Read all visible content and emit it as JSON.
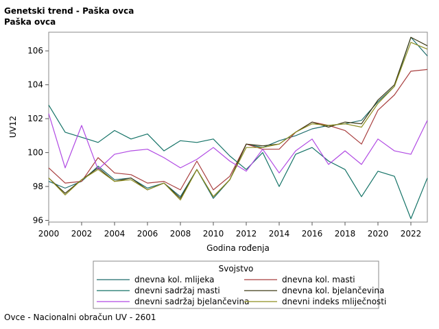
{
  "title_line1": "Genetski trend - Paška ovca",
  "title_line2": "Paška ovca",
  "footnote": "Ovce - Nacionalni obračun UV - 2601",
  "chart_data": {
    "type": "line",
    "xlabel": "Godina rođenja",
    "ylabel": "UV12",
    "xlim": [
      2000,
      2023
    ],
    "ylim": [
      95.9,
      107.1
    ],
    "xticks": [
      2000,
      2002,
      2004,
      2006,
      2008,
      2010,
      2012,
      2014,
      2016,
      2018,
      2020,
      2022
    ],
    "yticks": [
      96,
      98,
      100,
      102,
      104,
      106
    ],
    "grid": false,
    "legend_title": "Svojstvo",
    "legend_position": "bottom",
    "x": [
      2000,
      2001,
      2002,
      2003,
      2004,
      2005,
      2006,
      2007,
      2008,
      2009,
      2010,
      2011,
      2012,
      2013,
      2014,
      2015,
      2016,
      2017,
      2018,
      2019,
      2020,
      2021,
      2022,
      2023
    ],
    "series": [
      {
        "name": "dnevna kol. mlijeka",
        "color": "#1c6b6b",
        "values": [
          98.3,
          97.9,
          98.3,
          99.2,
          98.4,
          98.5,
          97.9,
          98.2,
          97.4,
          99.0,
          97.3,
          98.4,
          100.5,
          100.3,
          100.7,
          101.0,
          101.4,
          101.6,
          101.7,
          101.9,
          103.0,
          103.9,
          106.8,
          105.7
        ]
      },
      {
        "name": "dnevna kol. masti",
        "color": "#a83e3e",
        "values": [
          99.1,
          98.2,
          98.3,
          99.7,
          98.8,
          98.7,
          98.2,
          98.3,
          97.8,
          99.5,
          97.8,
          98.6,
          100.5,
          100.2,
          100.2,
          101.2,
          101.8,
          101.6,
          101.3,
          100.5,
          102.5,
          103.4,
          104.8,
          104.9
        ]
      },
      {
        "name": "dnevni sadržaj masti",
        "color": "#137266",
        "values": [
          102.8,
          101.2,
          100.9,
          100.6,
          101.3,
          100.8,
          101.1,
          100.1,
          100.7,
          100.6,
          100.8,
          99.8,
          99.0,
          100.0,
          98.0,
          99.9,
          100.3,
          99.5,
          99.0,
          97.4,
          98.9,
          98.6,
          96.1,
          98.5
        ]
      },
      {
        "name": "dnevna kol. bjelančevina",
        "color": "#3e3a14",
        "values": [
          98.5,
          97.6,
          98.4,
          99.1,
          98.3,
          98.5,
          97.8,
          98.2,
          97.3,
          99.0,
          97.4,
          98.4,
          100.5,
          100.4,
          100.5,
          101.2,
          101.8,
          101.5,
          101.8,
          101.7,
          103.1,
          104.0,
          106.8,
          106.3
        ]
      },
      {
        "name": "dnevni sadržaj bjelančevina",
        "color": "#b049e3",
        "values": [
          102.3,
          99.1,
          101.6,
          99.0,
          99.9,
          100.1,
          100.2,
          99.7,
          99.1,
          99.6,
          100.3,
          99.5,
          98.9,
          100.2,
          98.8,
          100.1,
          100.8,
          99.3,
          100.1,
          99.3,
          100.8,
          100.1,
          99.9,
          101.9
        ]
      },
      {
        "name": "dnevni indeks mliječnosti",
        "color": "#8d8d1f",
        "values": [
          98.5,
          97.5,
          98.4,
          99.0,
          98.3,
          98.4,
          97.8,
          98.2,
          97.2,
          99.0,
          97.4,
          98.4,
          100.3,
          100.3,
          100.5,
          101.2,
          101.7,
          101.6,
          101.7,
          101.5,
          102.9,
          103.9,
          106.5,
          106.1
        ]
      }
    ]
  }
}
